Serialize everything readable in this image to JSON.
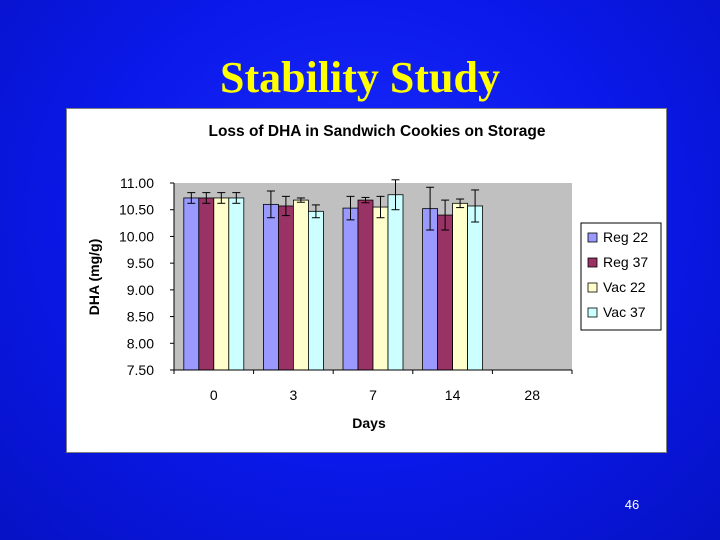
{
  "slide": {
    "title": "Stability Study",
    "page_number": "46"
  },
  "colors": {
    "background": "#0a18e8",
    "title": "#ffff00",
    "plot_area": "#c0c0c0"
  },
  "chart_data": {
    "type": "bar",
    "title": "Loss of DHA in Sandwich Cookies on Storage",
    "xlabel": "Days",
    "ylabel": "DHA (mg/g)",
    "ylim": [
      7.5,
      11.0
    ],
    "yticks": [
      "11.00",
      "10.50",
      "10.00",
      "9.50",
      "9.00",
      "8.50",
      "8.00",
      "7.50"
    ],
    "grid": false,
    "legend_position": "right",
    "categories": [
      "0",
      "3",
      "7",
      "14",
      "28"
    ],
    "series": [
      {
        "name": "Reg 22",
        "color": "#9999ff",
        "values": [
          10.72,
          10.6,
          10.53,
          10.52,
          null
        ],
        "errors": [
          0.1,
          0.25,
          0.22,
          0.4,
          null
        ]
      },
      {
        "name": "Reg 37",
        "color": "#993366",
        "values": [
          10.72,
          10.57,
          10.68,
          10.4,
          null
        ],
        "errors": [
          0.1,
          0.18,
          0.05,
          0.28,
          null
        ]
      },
      {
        "name": "Vac 22",
        "color": "#ffffcc",
        "values": [
          10.72,
          10.68,
          10.55,
          10.62,
          null
        ],
        "errors": [
          0.1,
          0.04,
          0.2,
          0.08,
          null
        ]
      },
      {
        "name": "Vac 37",
        "color": "#ccffff",
        "values": [
          10.72,
          10.47,
          10.78,
          10.57,
          null
        ],
        "errors": [
          0.1,
          0.12,
          0.28,
          0.3,
          null
        ]
      }
    ]
  }
}
